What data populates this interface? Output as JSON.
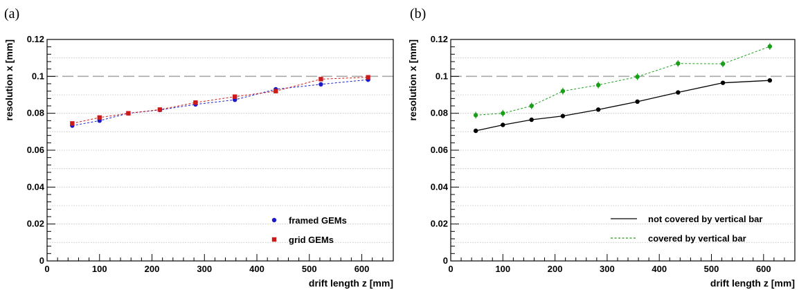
{
  "chart_data": [
    {
      "panel_label": "(a)",
      "type": "line",
      "xlabel": "drift length z [mm]",
      "ylabel": "resolution x [mm]",
      "xlim": [
        0,
        660
      ],
      "ylim": [
        0,
        0.12
      ],
      "xticks": [
        0,
        100,
        200,
        300,
        400,
        500,
        600
      ],
      "yticks": [
        0,
        0.02,
        0.04,
        0.06,
        0.08,
        0.1,
        0.12
      ],
      "ytick_labels": [
        "0",
        "0.02",
        "0.04",
        "0.06",
        "0.08",
        "0.1",
        "0.12"
      ],
      "grid": "horizontal dotted",
      "reference_line": 0.1,
      "legend_position": "bottom-right",
      "series": [
        {
          "name": "framed GEMs",
          "color": "#1a1acc",
          "marker": "circle",
          "line": "dotted",
          "x": [
            48,
            100,
            155,
            215,
            283,
            358,
            436,
            522,
            612
          ],
          "y": [
            0.0733,
            0.076,
            0.08,
            0.0818,
            0.0848,
            0.0873,
            0.093,
            0.0957,
            0.0982
          ],
          "err": [
            0.0008,
            0.0008,
            0.0008,
            0.0008,
            0.0008,
            0.0008,
            0.0008,
            0.0008,
            0.0008
          ]
        },
        {
          "name": "grid GEMs",
          "color": "#cc1a1a",
          "marker": "square",
          "line": "dotted",
          "x": [
            48,
            100,
            155,
            215,
            283,
            358,
            436,
            522,
            612
          ],
          "y": [
            0.0745,
            0.0777,
            0.08,
            0.082,
            0.0858,
            0.089,
            0.092,
            0.0985,
            0.0995
          ],
          "err": [
            0.0008,
            0.0008,
            0.0008,
            0.0008,
            0.0008,
            0.0008,
            0.0008,
            0.0008,
            0.0008
          ]
        }
      ]
    },
    {
      "panel_label": "(b)",
      "type": "line",
      "xlabel": "drift length z [mm]",
      "ylabel": "resolution x [mm]",
      "xlim": [
        0,
        660
      ],
      "ylim": [
        0,
        0.12
      ],
      "xticks": [
        0,
        100,
        200,
        300,
        400,
        500,
        600
      ],
      "yticks": [
        0,
        0.02,
        0.04,
        0.06,
        0.08,
        0.1,
        0.12
      ],
      "ytick_labels": [
        "0",
        "0.02",
        "0.04",
        "0.06",
        "0.08",
        "0.1",
        "0.12"
      ],
      "grid": "horizontal dotted",
      "reference_line": 0.1,
      "legend_position": "bottom-right",
      "series": [
        {
          "name": "not covered by vertical bar",
          "color": "#000000",
          "marker": "circle",
          "line": "solid",
          "x": [
            48,
            100,
            155,
            215,
            283,
            358,
            436,
            522,
            612
          ],
          "y": [
            0.0705,
            0.0737,
            0.0765,
            0.0785,
            0.082,
            0.0863,
            0.0913,
            0.0965,
            0.0978
          ],
          "err": [
            0.0007,
            0.0007,
            0.0007,
            0.0007,
            0.0007,
            0.0007,
            0.0007,
            0.0007,
            0.0007
          ]
        },
        {
          "name": "covered by vertical bar",
          "color": "#1a9e1a",
          "marker": "circle",
          "line": "dotted",
          "x": [
            48,
            100,
            155,
            215,
            283,
            358,
            436,
            522,
            612
          ],
          "y": [
            0.079,
            0.08,
            0.084,
            0.092,
            0.0953,
            0.0998,
            0.107,
            0.1068,
            0.1162
          ],
          "err": [
            0.0018,
            0.0018,
            0.0018,
            0.0018,
            0.0018,
            0.0018,
            0.0018,
            0.0018,
            0.0018
          ]
        }
      ]
    }
  ]
}
